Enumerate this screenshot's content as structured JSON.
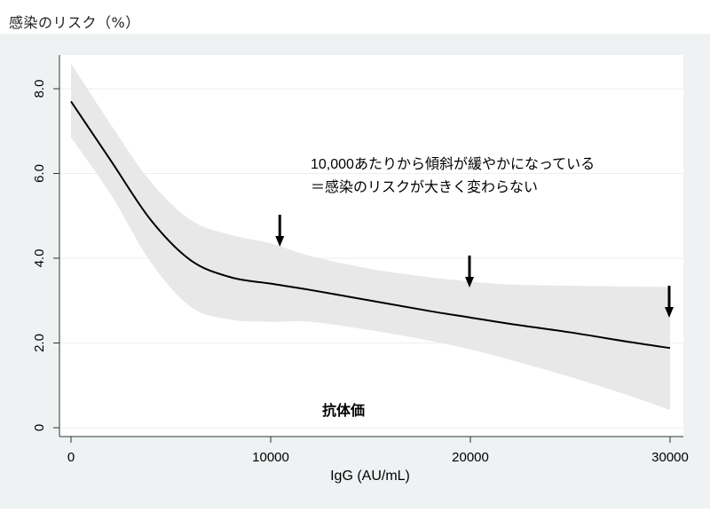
{
  "chart_data": {
    "type": "line",
    "title": "",
    "ylabel": "感染のリスク（%）",
    "xlabel": "IgG (AU/mL)",
    "xlim": [
      0,
      30000
    ],
    "ylim": [
      0,
      8.8
    ],
    "x_ticks": [
      0,
      10000,
      20000,
      30000
    ],
    "x_tick_labels": [
      "0",
      "10000",
      "20000",
      "30000"
    ],
    "y_ticks": [
      0,
      2,
      4,
      6,
      8
    ],
    "y_tick_labels": [
      "0",
      "2.0",
      "4.0",
      "6.0",
      "8.0"
    ],
    "grid": true,
    "series": [
      {
        "x": [
          0,
          2000,
          4000,
          6000,
          8000,
          10000,
          12000,
          15000,
          18000,
          20000,
          22000,
          25000,
          28000,
          30000
        ],
        "values": [
          7.7,
          6.3,
          4.9,
          3.95,
          3.55,
          3.4,
          3.25,
          3.0,
          2.75,
          2.6,
          2.45,
          2.25,
          2.02,
          1.88
        ],
        "lower": [
          6.85,
          5.5,
          3.9,
          2.85,
          2.55,
          2.5,
          2.5,
          2.3,
          2.05,
          1.85,
          1.6,
          1.2,
          0.75,
          0.42
        ],
        "upper": [
          8.6,
          7.15,
          5.8,
          4.9,
          4.55,
          4.35,
          4.05,
          3.75,
          3.55,
          3.45,
          3.38,
          3.35,
          3.33,
          3.32
        ]
      }
    ],
    "arrows_at_x": [
      10500,
      20000,
      30000
    ],
    "annotations": {
      "main_line1": "10,000あたりから傾斜が緩やかになっている",
      "main_line2": "＝感染のリスクが大きく変わらない",
      "bottom": "抗体価"
    }
  },
  "colors": {
    "plot_bg": "#eef2f3",
    "band": "#d9d9d9",
    "line": "#000000",
    "grid": "#ffffff"
  }
}
